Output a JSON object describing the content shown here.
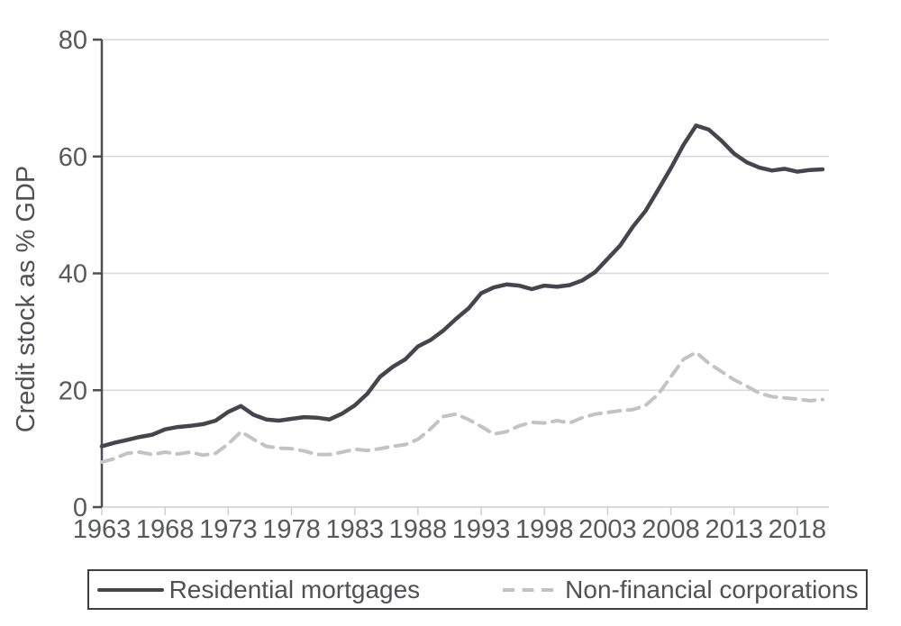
{
  "chart_data": {
    "type": "line",
    "title": "",
    "xlabel": "",
    "ylabel": "Credit stock as % GDP",
    "ylim": [
      0,
      80
    ],
    "xlim": [
      1963,
      2020.5
    ],
    "yticks": [
      0,
      20,
      40,
      60,
      80
    ],
    "xticks": [
      1963,
      1968,
      1973,
      1978,
      1983,
      1988,
      1993,
      1998,
      2003,
      2008,
      2013,
      2018
    ],
    "grid": "horizontal-light",
    "legend_position": "bottom-boxed",
    "years": [
      1963,
      1964,
      1965,
      1966,
      1967,
      1968,
      1969,
      1970,
      1971,
      1972,
      1973,
      1974,
      1975,
      1976,
      1977,
      1978,
      1979,
      1980,
      1981,
      1982,
      1983,
      1984,
      1985,
      1986,
      1987,
      1988,
      1989,
      1990,
      1991,
      1992,
      1993,
      1994,
      1995,
      1996,
      1997,
      1998,
      1999,
      2000,
      2001,
      2002,
      2003,
      2004,
      2005,
      2006,
      2007,
      2008,
      2009,
      2010,
      2011,
      2012,
      2013,
      2014,
      2015,
      2016,
      2017,
      2018,
      2019,
      2020
    ],
    "series": [
      {
        "name": "Residential mortgages",
        "line_style": "solid",
        "color": "#45454d",
        "values": [
          10.4,
          11.0,
          11.5,
          12.0,
          12.4,
          13.3,
          13.7,
          13.9,
          14.2,
          14.8,
          16.3,
          17.3,
          15.8,
          15.0,
          14.8,
          15.1,
          15.4,
          15.3,
          15.0,
          16.0,
          17.4,
          19.4,
          22.3,
          24.0,
          25.3,
          27.5,
          28.6,
          30.2,
          32.2,
          34.0,
          36.6,
          37.6,
          38.1,
          37.9,
          37.3,
          37.9,
          37.7,
          38.0,
          38.8,
          40.2,
          42.5,
          44.8,
          48.0,
          50.7,
          54.3,
          58.0,
          62.0,
          65.3,
          64.6,
          62.7,
          60.5,
          59.0,
          58.1,
          57.6,
          57.9,
          57.4,
          57.7,
          57.8
        ]
      },
      {
        "name": "Non-financial corporations",
        "line_style": "dashed",
        "color": "#c3c3c4",
        "values": [
          7.7,
          8.3,
          9.2,
          9.4,
          9.0,
          9.4,
          9.1,
          9.4,
          8.9,
          9.2,
          10.8,
          12.9,
          11.6,
          10.4,
          10.1,
          10.0,
          9.6,
          9.0,
          9.0,
          9.4,
          9.9,
          9.7,
          10.0,
          10.4,
          10.7,
          11.6,
          13.4,
          15.5,
          15.9,
          15.0,
          13.8,
          12.5,
          12.9,
          13.9,
          14.5,
          14.4,
          14.8,
          14.4,
          15.3,
          15.9,
          16.2,
          16.5,
          16.7,
          17.4,
          19.3,
          22.3,
          25.3,
          26.5,
          24.6,
          23.2,
          21.8,
          20.7,
          19.5,
          18.9,
          18.7,
          18.5,
          18.2,
          18.4
        ]
      }
    ],
    "colors": {
      "gridline": "#d8d8d8",
      "y_axis": "#4f4f52",
      "x_baseline": "#cfcfcf",
      "tick_label": "#58595b",
      "legend_border": "#3f3f41"
    }
  }
}
